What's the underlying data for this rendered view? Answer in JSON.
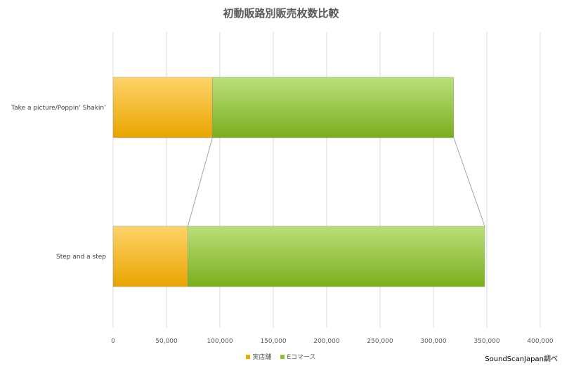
{
  "chart_data": {
    "type": "bar",
    "orientation": "horizontal",
    "stacked": true,
    "title": "初動販路別販売枚数比較",
    "categories": [
      "Take a picture/Poppin’ Shakin’",
      "Step and a step"
    ],
    "series": [
      {
        "name": "実店舗",
        "values": [
          93000,
          70000
        ],
        "color": "#F2A900"
      },
      {
        "name": "Eコマース",
        "values": [
          226000,
          278000
        ],
        "color": "#8DBE2F"
      }
    ],
    "xlim": [
      0,
      400000
    ],
    "xticks": [
      0,
      50000,
      100000,
      150000,
      200000,
      250000,
      300000,
      350000,
      400000
    ],
    "xtick_labels": [
      "0",
      "50,000",
      "100,000",
      "150,000",
      "200,000",
      "250,000",
      "300,000",
      "350,000",
      "400,000"
    ],
    "grid": true,
    "legend_position": "bottom",
    "series_lines": true
  },
  "source_text": "SoundScanJapan調べ"
}
